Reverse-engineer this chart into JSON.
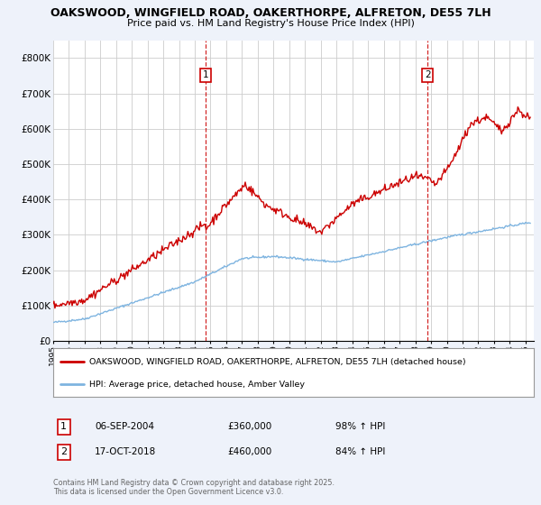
{
  "title_line1": "OAKSWOOD, WINGFIELD ROAD, OAKERTHORPE, ALFRETON, DE55 7LH",
  "title_line2": "Price paid vs. HM Land Registry's House Price Index (HPI)",
  "ylim": [
    0,
    850000
  ],
  "yticks": [
    0,
    100000,
    200000,
    300000,
    400000,
    500000,
    600000,
    700000,
    800000
  ],
  "ytick_labels": [
    "£0",
    "£100K",
    "£200K",
    "£300K",
    "£400K",
    "£500K",
    "£600K",
    "£700K",
    "£800K"
  ],
  "property_color": "#cc0000",
  "hpi_color": "#7eb4e0",
  "marker1_x": 2004.68,
  "marker2_x": 2018.79,
  "legend_property": "OAKSWOOD, WINGFIELD ROAD, OAKERTHORPE, ALFRETON, DE55 7LH (detached house)",
  "legend_hpi": "HPI: Average price, detached house, Amber Valley",
  "footnote": "Contains HM Land Registry data © Crown copyright and database right 2025.\nThis data is licensed under the Open Government Licence v3.0.",
  "background_color": "#eef2fa",
  "plot_background": "#ffffff",
  "grid_color": "#cccccc"
}
